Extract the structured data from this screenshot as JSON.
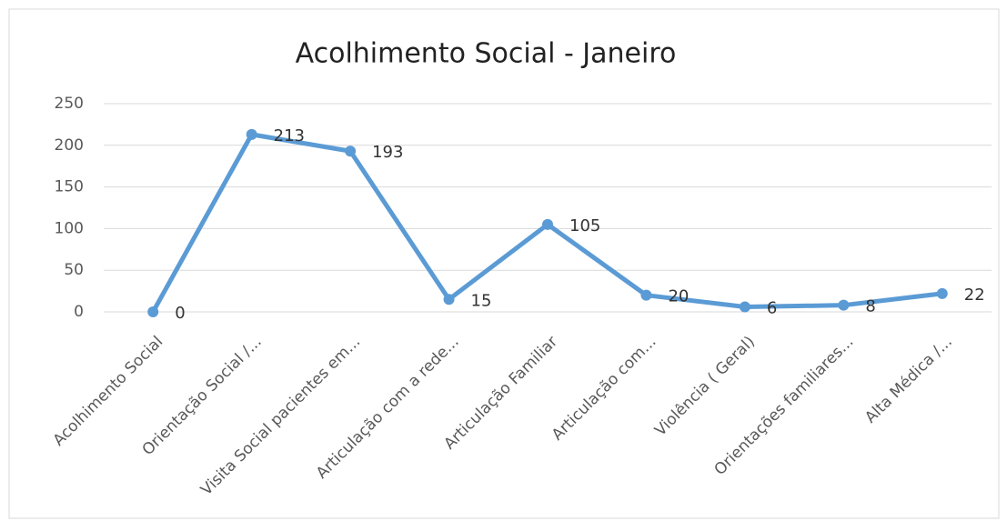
{
  "chart_data": {
    "type": "line",
    "title": "Acolhimento Social - Janeiro",
    "categories": [
      "Acolhimento Social",
      "Orientação Social /...",
      "Visita Social pacientes em...",
      "Articulação com a rede...",
      "Articulação Familiar",
      "Articulação  com...",
      "Violência ( Geral)",
      "Orientações familiares...",
      "Alta Médica /..."
    ],
    "values": [
      0,
      213,
      193,
      15,
      105,
      20,
      6,
      8,
      22
    ],
    "color": "#5b9bd5",
    "ylim": [
      0,
      250
    ],
    "yticks": [
      0,
      50,
      100,
      150,
      200,
      250
    ],
    "grid": true
  }
}
